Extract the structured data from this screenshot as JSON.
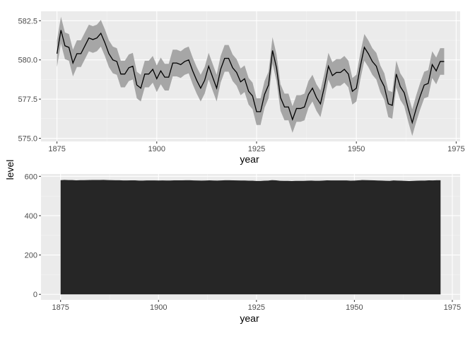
{
  "colors": {
    "panel_bg": "#ebebeb",
    "grid_major": "#ffffff",
    "ribbon_fill": "#a6a6a6",
    "line": "#000000",
    "area_fill": "#262626",
    "tick_text": "#4d4d4d"
  },
  "chart_data": [
    {
      "type": "line",
      "subtype": "line-with-confidence-ribbon",
      "xlabel": "year",
      "ylabel": "level",
      "xlim": [
        1871,
        1976
      ],
      "ylim": [
        574.8,
        583.1
      ],
      "x_ticks": [
        1875,
        1900,
        1925,
        1950,
        1975
      ],
      "x_tick_labels": [
        "1875",
        "1900",
        "1925",
        "1950",
        "1975"
      ],
      "y_ticks": [
        575.0,
        577.5,
        580.0,
        582.5
      ],
      "y_tick_labels": [
        "575.0",
        "577.5",
        "580.0",
        "582.5"
      ],
      "grid": true,
      "series": [
        {
          "x": [
            1875,
            1876,
            1877,
            1878,
            1879,
            1880,
            1881,
            1882,
            1883,
            1884,
            1885,
            1886,
            1887,
            1888,
            1889,
            1890,
            1891,
            1892,
            1893,
            1894,
            1895,
            1896,
            1897,
            1898,
            1899,
            1900,
            1901,
            1902,
            1903,
            1904,
            1905,
            1906,
            1907,
            1908,
            1909,
            1910,
            1911,
            1912,
            1913,
            1914,
            1915,
            1916,
            1917,
            1918,
            1919,
            1920,
            1921,
            1922,
            1923,
            1924,
            1925,
            1926,
            1927,
            1928,
            1929,
            1930,
            1931,
            1932,
            1933,
            1934,
            1935,
            1936,
            1937,
            1938,
            1939,
            1940,
            1941,
            1942,
            1943,
            1944,
            1945,
            1946,
            1947,
            1948,
            1949,
            1950,
            1951,
            1952,
            1953,
            1954,
            1955,
            1956,
            1957,
            1958,
            1959,
            1960,
            1961,
            1962,
            1963,
            1964,
            1965,
            1966,
            1967,
            1968,
            1969,
            1970,
            1971,
            1972
          ],
          "y": [
            580.4,
            581.9,
            580.9,
            580.8,
            579.8,
            580.4,
            580.4,
            580.9,
            581.4,
            581.3,
            581.4,
            581.7,
            581.1,
            580.4,
            580.0,
            579.9,
            579.1,
            579.1,
            579.5,
            579.6,
            578.4,
            578.2,
            579.1,
            579.1,
            579.4,
            578.8,
            579.3,
            578.9,
            578.9,
            579.8,
            579.8,
            579.7,
            579.9,
            580.0,
            579.3,
            578.7,
            578.2,
            578.7,
            579.6,
            578.9,
            578.2,
            579.4,
            580.1,
            580.1,
            579.5,
            579.2,
            578.6,
            578.8,
            578.0,
            577.7,
            576.7,
            576.7,
            577.8,
            578.4,
            580.6,
            579.5,
            577.6,
            577.0,
            577.0,
            576.2,
            576.9,
            576.9,
            577.0,
            577.8,
            578.2,
            577.6,
            577.2,
            578.3,
            579.6,
            579.0,
            579.2,
            579.2,
            579.4,
            579.1,
            578.0,
            578.2,
            579.6,
            580.8,
            580.4,
            579.9,
            579.6,
            578.8,
            578.3,
            577.2,
            577.1,
            579.1,
            578.3,
            577.9,
            576.9,
            576.0,
            576.9,
            577.7,
            578.4,
            578.5,
            579.7,
            579.3,
            579.9,
            579.9
          ]
        }
      ]
    },
    {
      "type": "area",
      "xlabel": "year",
      "ylabel": "level",
      "xlim": [
        1870,
        1977
      ],
      "ylim": [
        -28,
        612
      ],
      "x_ticks": [
        1875,
        1900,
        1925,
        1950,
        1975
      ],
      "x_tick_labels": [
        "1875",
        "1900",
        "1925",
        "1950",
        "1975"
      ],
      "y_ticks": [
        0,
        200,
        400,
        600
      ],
      "y_tick_labels": [
        "0",
        "200",
        "400",
        "600"
      ],
      "grid": true,
      "series": [
        {
          "x_from": 1875,
          "x_to": 1972,
          "values_ref": "same as panel 1 series"
        }
      ]
    }
  ],
  "shared_ylabel": "level"
}
